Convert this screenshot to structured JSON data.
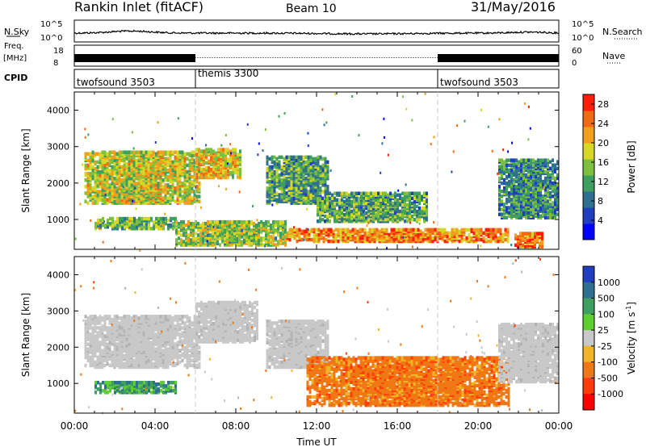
{
  "header": {
    "station": "Rankin Inlet (fitACF)",
    "beam": "Beam 10",
    "date": "31/May/2016"
  },
  "side_labels": {
    "nsky": "N.Sky",
    "freq": "Freq.",
    "freq_unit": "[MHz]",
    "cpid": "CPID",
    "nsearch": "N.Search",
    "nave": "Nave"
  },
  "colors": {
    "trace": "#000000",
    "axis": "#000000",
    "dashed": "#c8c8c8"
  },
  "chart_data": [
    {
      "type": "line",
      "title": "N.Sky / N.Search",
      "ylabel_left": [
        "10^0",
        "10^5"
      ],
      "ylabel_right": [
        "10^0",
        "10^5"
      ],
      "x_range_hours": [
        0,
        24
      ],
      "description_values": "noise level trace, roughly constant near 10^1, slight increase around 02:00-04:00"
    },
    {
      "type": "line",
      "title": "Freq. / Nave",
      "ylim_left": [
        8,
        18
      ],
      "ylim_right": [
        0,
        60
      ],
      "left_ticks": [
        "8",
        "18"
      ],
      "right_ticks": [
        "0",
        "60"
      ],
      "dense_segments_hours": [
        [
          0,
          6
        ],
        [
          18,
          24
        ]
      ]
    },
    {
      "type": "table",
      "title": "CPID",
      "segments": [
        {
          "name": "twofsound 3503",
          "start": 0,
          "end": 6
        },
        {
          "name": "themis 3300",
          "start": 6,
          "end": 18
        },
        {
          "name": "twofsound 3503",
          "start": 18,
          "end": 24
        }
      ]
    },
    {
      "type": "heatmap",
      "title": "Power",
      "ylabel": "Slant Range [km]",
      "ylim": [
        180,
        4500
      ],
      "yticks": [
        1000,
        2000,
        3000,
        4000
      ],
      "colorbar_label": "Power [dB]",
      "colorbar_ticks": [
        "4",
        "8",
        "12",
        "16",
        "20",
        "24",
        "28"
      ],
      "colorbar_range": [
        0,
        30
      ],
      "colormap": [
        "#0000ff",
        "#1f3fbf",
        "#2f6f8f",
        "#3f9f5f",
        "#7fbf3f",
        "#d7d728",
        "#f0a01e",
        "#f06a14",
        "#ff1e0a"
      ],
      "echo_regions": [
        {
          "x": [
            0.5,
            6.2
          ],
          "y": [
            1400,
            2800
          ],
          "mean_db": 18
        },
        {
          "x": [
            6.0,
            8.2
          ],
          "y": [
            2100,
            2900
          ],
          "mean_db": 20
        },
        {
          "x": [
            1.0,
            5.0
          ],
          "y": [
            700,
            1000
          ],
          "mean_db": 14
        },
        {
          "x": [
            5.0,
            10.5
          ],
          "y": [
            250,
            900
          ],
          "mean_db": 16
        },
        {
          "x": [
            9.5,
            12.5
          ],
          "y": [
            1400,
            2700
          ],
          "mean_db": 12
        },
        {
          "x": [
            10.5,
            21.5
          ],
          "y": [
            350,
            700
          ],
          "mean_db": 24
        },
        {
          "x": [
            12.0,
            17.5
          ],
          "y": [
            900,
            1700
          ],
          "mean_db": 12
        },
        {
          "x": [
            21.0,
            24.0
          ],
          "y": [
            1000,
            2600
          ],
          "mean_db": 10
        },
        {
          "x": [
            21.8,
            23.2
          ],
          "y": [
            200,
            600
          ],
          "mean_db": 26
        }
      ]
    },
    {
      "type": "heatmap",
      "title": "Velocity",
      "ylabel": "Slant Range [km]",
      "ylim": [
        180,
        4500
      ],
      "yticks": [
        1000,
        2000,
        3000,
        4000
      ],
      "colorbar_label": "Velocity [m s-1]",
      "colorbar_ticks": [
        "1000",
        "500",
        "100",
        "25",
        "-25",
        "-100",
        "-500",
        "-1000"
      ],
      "colorbar_colors": [
        "#1f3fbf",
        "#2f6f8f",
        "#3f9f5f",
        "#5fcf2f",
        "#c8c8c8",
        "#f0b428",
        "#f07814",
        "#ff3c0a",
        "#ff0000"
      ],
      "echo_regions": [
        {
          "x": [
            0.5,
            6.2
          ],
          "y": [
            1400,
            2800
          ],
          "class": "ground"
        },
        {
          "x": [
            6.0,
            9.0
          ],
          "y": [
            2100,
            3200
          ],
          "class": "ground"
        },
        {
          "x": [
            1.0,
            5.0
          ],
          "y": [
            700,
            1000
          ],
          "class": "toward"
        },
        {
          "x": [
            9.5,
            12.5
          ],
          "y": [
            1400,
            2700
          ],
          "class": "ground"
        },
        {
          "x": [
            11.5,
            21.5
          ],
          "y": [
            350,
            1700
          ],
          "class": "away"
        },
        {
          "x": [
            21.0,
            24.0
          ],
          "y": [
            1000,
            2600
          ],
          "class": "ground"
        }
      ]
    }
  ],
  "x_axis": {
    "label": "Time UT",
    "ticks": [
      "00:00",
      "04:00",
      "08:00",
      "12:00",
      "16:00",
      "20:00",
      "00:00"
    ]
  }
}
